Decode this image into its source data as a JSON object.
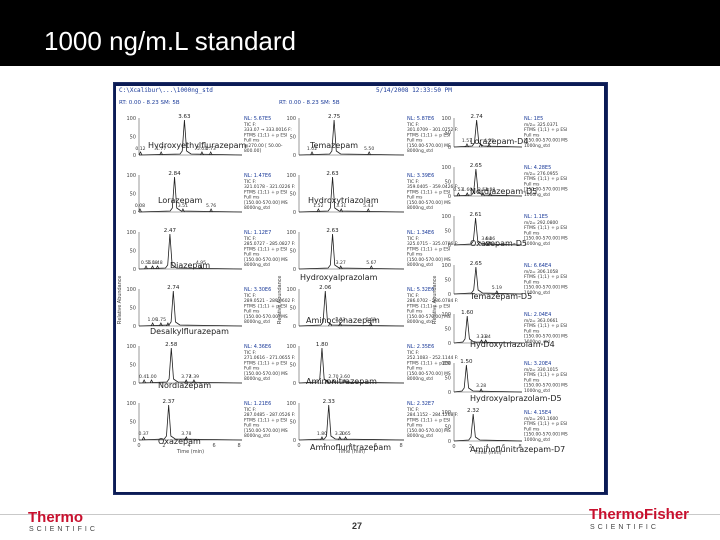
{
  "slide": {
    "title": "1000 ng/m.L standard",
    "page_number": "27"
  },
  "screenshot": {
    "file_label": "C:\\Xcalibur\\...\\1000ng_std",
    "date_label": "5/14/2008 12:33:50 PM",
    "columns": [
      {
        "rt_header": "RT: 0.00 - 8.23   SM: 5B",
        "y_axis_label": "Relative Abundance",
        "x_axis_label": "Time (min)",
        "panels": [
          {
            "label": "Hydroxyethylflurazepam",
            "peak_rt": "3.63",
            "side": [
              "0.12",
              "1.77",
              "5.73",
              "5.03"
            ],
            "nl": "NL: 5.67E5",
            "trace": [
              "TIC F:",
              "333.07 → 333.0016 F:",
              "FTMS {1;1} + p ESI",
              "Full ms",
              "@270.00 [ 50.00-",
              "800.00]"
            ]
          },
          {
            "label": "Lorazepam",
            "peak_rt": "2.84",
            "side": [
              "0.08",
              "3.51",
              "5.76"
            ],
            "nl": "NL: 1.47E6",
            "trace": [
              "TIC F:",
              "321.0178 - 321.0226 F:",
              "FTMS {1;1} + p ESI",
              "Full ms",
              "[150.00-570.00] MS",
              "8000ng_std"
            ]
          },
          {
            "label": "Diazepam",
            "peak_rt": "2.47",
            "side": [
              "0.56",
              "1.08",
              "1.48",
              "4.95"
            ],
            "nl": "NL: 1.12E7",
            "trace": [
              "TIC F:",
              "285.0727 - 285.0827 F:",
              "FTMS {1;1} + p ESI",
              "Full ms",
              "[150.00-570.00] MS",
              "8000ng_std"
            ]
          },
          {
            "label": "Desalkylflurazepam",
            "peak_rt": "2.74",
            "side": [
              "1.09",
              "1.75",
              "2.31"
            ],
            "nl": "NL: 3.30E6",
            "trace": [
              "TIC F:",
              "289.0521 - 289.0602 F:",
              "FTMS {1;1} + p ESI",
              "Full ms",
              "[150.00-570.00] MS",
              "8000ng_std"
            ]
          },
          {
            "label": "Nordiazepam",
            "peak_rt": "2.58",
            "side": [
              "0.41",
              "1.00",
              "3.77",
              "4.39"
            ],
            "nl": "NL: 4.36E6",
            "trace": [
              "TIC F:",
              "271.0616 - 271.0655 F:",
              "FTMS {1;1} + p ESI",
              "Full ms",
              "[150.00-570.00] MS",
              "8000ng_std"
            ]
          },
          {
            "label": "Oxazepam",
            "peak_rt": "2.37",
            "side": [
              "0.37",
              "3.78"
            ],
            "nl": "NL: 1.21E6",
            "trace": [
              "TIC F:",
              "287.0485 - 287.0526 F:",
              "FTMS {1;1} + p ESI",
              "Full ms",
              "[150.00-570.00] MS",
              "8000ng_std"
            ]
          }
        ]
      },
      {
        "rt_header": "RT: 0.00 - 8.23   SM: 5B",
        "y_axis_label": "Relative Abundance",
        "x_axis_label": "Time (min)",
        "panels": [
          {
            "label": "Temazepam",
            "peak_rt": "2.75",
            "side": [
              "1.02",
              "2.74",
              "5.50"
            ],
            "nl": "NL: 5.87E6",
            "trace": [
              "TIC F:",
              "301.0709 - 301.0752 F:",
              "FTMS {1;1} + p ESI",
              "Full ms",
              "[150.00-570.00] MS",
              "8000ng_std"
            ]
          },
          {
            "label": "Hydroxytriazolam",
            "peak_rt": "2.63",
            "side": [
              "1.52",
              "3.31",
              "5.43"
            ],
            "nl": "NL: 3.39E6",
            "trace": [
              "TIC F:",
              "359.0405 - 359.0426 F:",
              "FTMS {1;1} + p ESI",
              "Full ms",
              "[150.00-570.00] MS",
              "8000ng_std"
            ]
          },
          {
            "label": "Hydroxyalprazolam",
            "peak_rt": "2.63",
            "side": [
              "3.27",
              "5.67"
            ],
            "nl": "NL: 1.34E6",
            "trace": [
              "TIC F:",
              "325.0715 - 325.0786 F:",
              "FTMS {1;1} + p ESI",
              "Full ms",
              "[150.00-570.00] MS",
              "8000ng_std"
            ]
          },
          {
            "label": "Aminoclonazepam",
            "peak_rt": "2.06",
            "side": [
              "1.93",
              "2.43",
              "3.23",
              "5.63"
            ],
            "nl": "NL: 5.32E6",
            "trace": [
              "TIC F:",
              "286.0702 - 286.0784 F:",
              "FTMS {1;1} + p ESI",
              "Full ms",
              "[150.00-570.00] MS",
              "8000ng_std"
            ]
          },
          {
            "label": "Aminonitrazepam",
            "peak_rt": "1.80",
            "side": [
              "1.65",
              "2.20",
              "2.70",
              "3.60"
            ],
            "nl": "NL: 2.35E6",
            "trace": [
              "TIC F:",
              "252.1083 - 252.1144 F:",
              "FTMS {1;1} + p ESI",
              "Full ms",
              "[150.00-570.00] MS",
              "8000ng_std"
            ]
          },
          {
            "label": "Aminoflunitrazepam",
            "peak_rt": "2.33",
            "side": [
              "1.80",
              "2.25",
              "3.20",
              "3.65"
            ],
            "nl": "NL: 2.32E7",
            "trace": [
              "TIC F:",
              "284.1152 - 284.1268 F:",
              "FTMS {1;1} + p ESI",
              "Full ms",
              "[150.00-570.00] MS",
              "8000ng_std"
            ]
          }
        ]
      },
      {
        "rt_header": "",
        "y_axis_label": "Relative Abundance",
        "x_axis_label": "Time (min)",
        "panels": [
          {
            "label": "Lorazepam-D4",
            "peak_rt": "2.74",
            "side": [
              "1.57",
              "3.23",
              "4.25"
            ],
            "nl": "NL: 1E5",
            "trace": [
              "m/z= 325.0371",
              "FTMS {1;1} + p ESI",
              "Full ms",
              "[150.00-570.00] MS",
              "1000ng_std"
            ]
          },
          {
            "label": "Nordiazepam-D5",
            "peak_rt": "2.65",
            "side": [
              "0.53",
              "1.60",
              "3.51",
              "4.38"
            ],
            "nl": "NL: 4.28E5",
            "trace": [
              "m/z= 276.0955",
              "FTMS {1;1} + p ESI",
              "Full ms",
              "[150.00-570.00] MS",
              "1000ng_std"
            ]
          },
          {
            "label": "Oxazepam-D5",
            "peak_rt": "2.61",
            "side": [
              "2.61",
              "3.94",
              "4.36"
            ],
            "nl": "NL: 1.1E5",
            "trace": [
              "m/z= 292.0800",
              "FTMS {1;1} + p ESI",
              "Full ms",
              "[150.00-570.00] MS",
              "1000ng_std"
            ]
          },
          {
            "label": "Temazepam-D5",
            "peak_rt": "2.65",
            "side": [
              "5.19"
            ],
            "nl": "NL: 6.64E4",
            "trace": [
              "m/z= 306.1058",
              "FTMS {1;1} + p ESI",
              "Full ms",
              "[150.00-570.00] MS",
              "1000ng_std"
            ]
          },
          {
            "label": "Hydroxytriazolam-D4",
            "peak_rt": "1.60",
            "side": [
              "1.60",
              "3.33",
              "3.84"
            ],
            "nl": "NL: 2.04E4",
            "trace": [
              "m/z= 363.0661",
              "FTMS {1;1} + p ESI",
              "Full ms",
              "[150.00-570.00] MS",
              "1000ng_std"
            ]
          },
          {
            "label": "Hydroxyalprazolam-D5",
            "peak_rt": "1.50",
            "side": [
              "1.50",
              "3.28"
            ],
            "nl": "NL: 3.20E4",
            "trace": [
              "m/z= 330.1015",
              "FTMS {1;1} + p ESI",
              "Full ms",
              "[150.00-570.00] MS",
              "1000ng_std"
            ]
          },
          {
            "label": "Aminoflunitrazepam-D7",
            "peak_rt": "2.32",
            "side": [
              "1.90",
              "2.32"
            ],
            "nl": "NL: 4.15E4",
            "trace": [
              "m/z= 291.1600",
              "FTMS {1;1} + p ESI",
              "Full ms",
              "[150.00-570.00] MS",
              "1000ng_std"
            ]
          }
        ]
      }
    ]
  },
  "logos": {
    "left": {
      "name": "Thermo",
      "sub": "SCIENTIFIC"
    },
    "right": {
      "name": "ThermoFisher",
      "sub": "SCIENTIFIC"
    }
  },
  "colors": {
    "title_bar": "#000000",
    "trace": "#1f1f1f",
    "brand": "#c8102e",
    "frame": "#0b1b55",
    "header_text": "#1a3a99"
  }
}
